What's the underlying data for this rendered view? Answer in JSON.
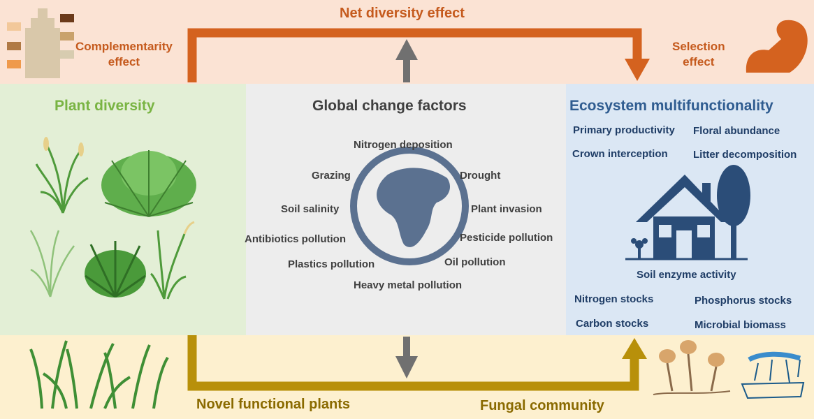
{
  "top": {
    "net_diversity": "Net diversity effect",
    "complementarity": "Complementarity\neffect",
    "selection": "Selection\neffect"
  },
  "plant_diversity": {
    "title": "Plant diversity"
  },
  "global_change": {
    "title": "Global change factors",
    "factors": {
      "nitrogen": "Nitrogen deposition",
      "grazing": "Grazing",
      "drought": "Drought",
      "salinity": "Soil salinity",
      "invasion": "Plant invasion",
      "antibiotics": "Antibiotics pollution",
      "pesticide": "Pesticide pollution",
      "plastics": "Plastics pollution",
      "oil": "Oil pollution",
      "heavy_metal": "Heavy metal pollution"
    }
  },
  "ecosystem": {
    "title": "Ecosystem multifunctionality",
    "functions": {
      "primary": "Primary productivity",
      "floral": "Floral abundance",
      "crown": "Crown interception",
      "litter": "Litter decomposition",
      "enzyme": "Soil enzyme activity",
      "nitrogen_stocks": "Nitrogen stocks",
      "phosphorus_stocks": "Phosphorus stocks",
      "carbon_stocks": "Carbon stocks",
      "microbial": "Microbial biomass"
    }
  },
  "bottom": {
    "novel_plants": "Novel functional plants",
    "fungal": "Fungal community"
  },
  "colors": {
    "orange_arrow": "#d4621f",
    "gold_arrow": "#b8900a",
    "gray_arrow": "#707070",
    "globe": "#5b7190",
    "house": "#2b4d78",
    "plant_green": "#4e9a3a"
  }
}
